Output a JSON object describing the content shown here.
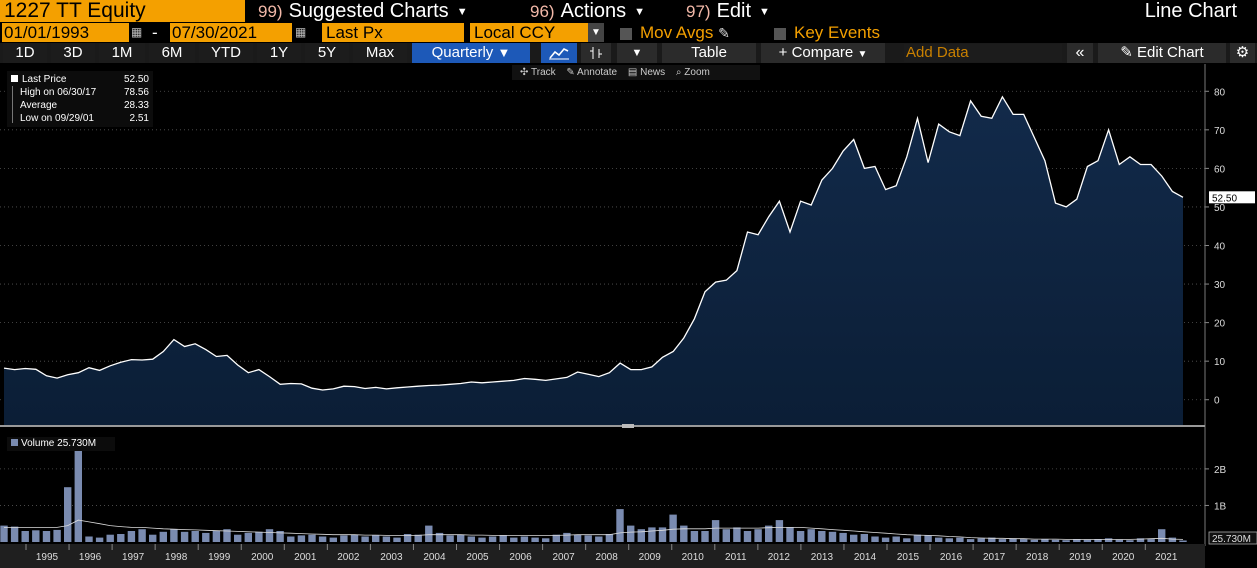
{
  "header": {
    "ticker": "1227 TT Equity",
    "menus": [
      {
        "num": "99)",
        "label": "Suggested Charts"
      },
      {
        "num": "96)",
        "label": "Actions"
      },
      {
        "num": "97)",
        "label": "Edit"
      }
    ],
    "chart_type": "Line Chart"
  },
  "controls": {
    "start_date": "01/01/1993",
    "end_date": "07/30/2021",
    "field": "Last Px",
    "currency": "Local CCY",
    "mov_avgs": "Mov Avgs",
    "key_events": "Key Events"
  },
  "toolbar": {
    "periods": [
      "1D",
      "3D",
      "1M",
      "6M",
      "YTD",
      "1Y",
      "5Y",
      "Max"
    ],
    "frequency": "Quarterly",
    "table_label": "Table",
    "compare_label": "+ Compare",
    "add_data_placeholder": "Add Data",
    "edit_chart_label": "Edit Chart"
  },
  "chart_tools": [
    "Track",
    "Annotate",
    "News",
    "Zoom"
  ],
  "legend": {
    "last_price_label": "Last Price",
    "last_price": "52.50",
    "high_label": "High on 06/30/17",
    "high": "78.56",
    "average_label": "Average",
    "average": "28.33",
    "low_label": "Low on 09/29/01",
    "low": "2.51",
    "volume_label": "Volume",
    "volume": "25.730M"
  },
  "colors": {
    "accent_orange": "#f4a000",
    "header_red": "#8d1320",
    "selected_blue": "#1d59b8",
    "area_fill": "#0f2440",
    "volume_bar": "#7a8bb0"
  },
  "chart_data": {
    "type": "area",
    "x_years": [
      "1995",
      "1996",
      "1997",
      "1998",
      "1999",
      "2000",
      "2001",
      "2002",
      "2003",
      "2004",
      "2005",
      "2006",
      "2007",
      "2008",
      "2009",
      "2010",
      "2011",
      "2012",
      "2013",
      "2014",
      "2015",
      "2016",
      "2017",
      "2018",
      "2019",
      "2020",
      "2021"
    ],
    "price_ticks": [
      "0",
      "10",
      "20",
      "30",
      "40",
      "50",
      "60",
      "70",
      "80"
    ],
    "ylim": [
      -5,
      85
    ],
    "last_value_label": "52.50",
    "price_quarterly": [
      8.2,
      7.8,
      8.1,
      7.9,
      6.2,
      5.6,
      6.5,
      7.0,
      8.3,
      7.6,
      8.8,
      9.7,
      10.4,
      10.3,
      10.5,
      12.5,
      15.6,
      13.8,
      14.5,
      13.0,
      11.2,
      11.5,
      9.0,
      7.0,
      7.8,
      6.0,
      4.0,
      4.2,
      4.1,
      3.0,
      2.51,
      2.8,
      3.5,
      3.4,
      2.9,
      3.2,
      2.8,
      3.1,
      3.3,
      3.5,
      3.7,
      3.8,
      4.0,
      4.2,
      4.6,
      4.4,
      4.6,
      4.8,
      5.0,
      5.5,
      5.3,
      5.0,
      5.4,
      5.8,
      7.2,
      6.6,
      6.0,
      7.0,
      9.5,
      7.8,
      7.8,
      8.5,
      11.0,
      12.5,
      16.0,
      21.0,
      28.0,
      30.5,
      31.0,
      33.5,
      43.5,
      42.8,
      47.5,
      51.5,
      43.5,
      51.5,
      50.5,
      57.0,
      60.0,
      64.5,
      67.5,
      60.0,
      60.5,
      54.5,
      55.5,
      63.0,
      73.0,
      61.5,
      71.5,
      69.5,
      68.5,
      77.5,
      73.5,
      73.0,
      78.56,
      74.0,
      74.0,
      68.0,
      62.0,
      51.0,
      50.0,
      52.0,
      60.5,
      62.0,
      70.0,
      61.0,
      63.0,
      61.0,
      61.0,
      58.0,
      54.0,
      52.5
    ],
    "volume_ticks": [
      "1B",
      "2B"
    ],
    "volume_ylim_billion": [
      0,
      2.9
    ],
    "volume_quarterly_billion": [
      0.45,
      0.42,
      0.3,
      0.32,
      0.3,
      0.33,
      1.5,
      2.5,
      0.15,
      0.12,
      0.2,
      0.22,
      0.3,
      0.35,
      0.2,
      0.28,
      0.35,
      0.28,
      0.3,
      0.25,
      0.3,
      0.35,
      0.2,
      0.25,
      0.28,
      0.35,
      0.3,
      0.15,
      0.18,
      0.2,
      0.15,
      0.12,
      0.18,
      0.2,
      0.15,
      0.18,
      0.15,
      0.12,
      0.22,
      0.2,
      0.45,
      0.25,
      0.18,
      0.2,
      0.15,
      0.12,
      0.15,
      0.18,
      0.12,
      0.15,
      0.12,
      0.1,
      0.2,
      0.25,
      0.2,
      0.18,
      0.15,
      0.22,
      0.9,
      0.45,
      0.35,
      0.4,
      0.4,
      0.75,
      0.45,
      0.3,
      0.3,
      0.6,
      0.35,
      0.4,
      0.3,
      0.35,
      0.45,
      0.6,
      0.4,
      0.3,
      0.35,
      0.3,
      0.28,
      0.25,
      0.2,
      0.22,
      0.15,
      0.12,
      0.15,
      0.1,
      0.2,
      0.18,
      0.12,
      0.1,
      0.12,
      0.08,
      0.1,
      0.12,
      0.08,
      0.1,
      0.08,
      0.06,
      0.08,
      0.06,
      0.05,
      0.08,
      0.06,
      0.08,
      0.1,
      0.06,
      0.05,
      0.1,
      0.08,
      0.35,
      0.12,
      0.04
    ],
    "volume_avg_billion": [
      0.4,
      0.4,
      0.4,
      0.4,
      0.4,
      0.4,
      0.45,
      0.6,
      0.55,
      0.5,
      0.45,
      0.42,
      0.4,
      0.4,
      0.38,
      0.36,
      0.35,
      0.34,
      0.33,
      0.32,
      0.31,
      0.3,
      0.29,
      0.28,
      0.27,
      0.26,
      0.25,
      0.24,
      0.23,
      0.22,
      0.21,
      0.2,
      0.2,
      0.2,
      0.19,
      0.19,
      0.18,
      0.18,
      0.18,
      0.18,
      0.2,
      0.2,
      0.2,
      0.2,
      0.19,
      0.19,
      0.18,
      0.18,
      0.18,
      0.18,
      0.18,
      0.18,
      0.18,
      0.19,
      0.2,
      0.2,
      0.2,
      0.2,
      0.25,
      0.27,
      0.28,
      0.3,
      0.32,
      0.35,
      0.36,
      0.36,
      0.36,
      0.38,
      0.38,
      0.38,
      0.38,
      0.38,
      0.39,
      0.4,
      0.4,
      0.4,
      0.38,
      0.36,
      0.34,
      0.32,
      0.3,
      0.28,
      0.26,
      0.24,
      0.22,
      0.2,
      0.19,
      0.18,
      0.17,
      0.15,
      0.14,
      0.12,
      0.11,
      0.1,
      0.1,
      0.09,
      0.09,
      0.08,
      0.08,
      0.08,
      0.07,
      0.07,
      0.07,
      0.07,
      0.07,
      0.07,
      0.07,
      0.08,
      0.09,
      0.1,
      0.08,
      0.07
    ]
  }
}
